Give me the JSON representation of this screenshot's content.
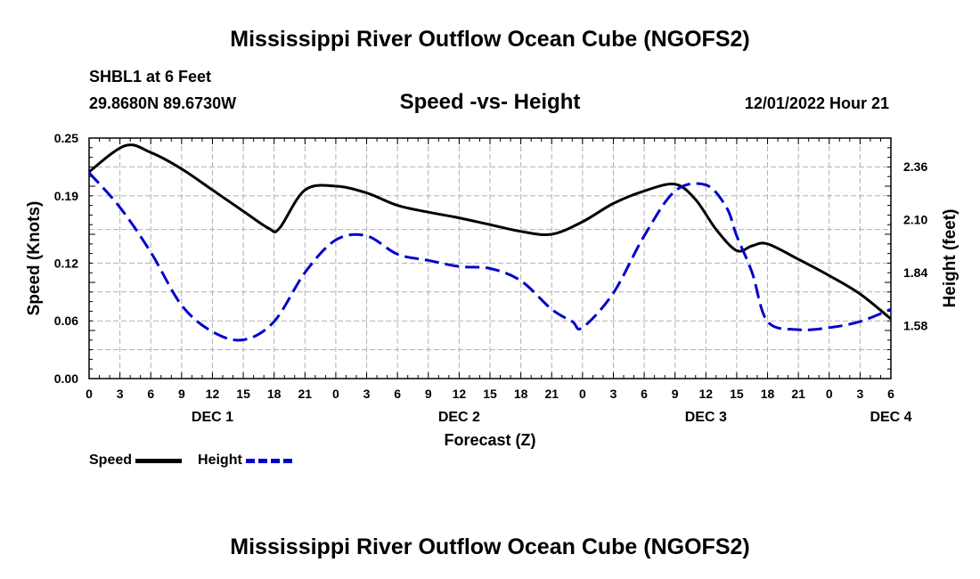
{
  "header": {
    "title": "Mississippi River Outflow Ocean Cube (NGOFS2)",
    "station": "SHBL1 at 6 Feet",
    "coordinates": "29.8680N  89.6730W",
    "subtitle": "Speed -vs- Height",
    "datetime": "12/01/2022 Hour 21"
  },
  "footer": {
    "title": "Mississippi River Outflow Ocean Cube (NGOFS2)"
  },
  "legend": {
    "speed_label": "Speed",
    "height_label": "Height"
  },
  "colors": {
    "speed": "#000000",
    "height": "#0000cc",
    "grid": "#b0b0b0"
  },
  "chart_data": {
    "type": "line",
    "title": "Speed -vs- Height",
    "xlabel": "Forecast (Z)",
    "ylabel": "Speed (Knots)",
    "y2label": "Height (feet)",
    "x_unit": "hours from Dec 1 00Z",
    "xlim": [
      0,
      78
    ],
    "x_ticks": [
      0,
      3,
      6,
      9,
      12,
      15,
      18,
      21,
      24,
      27,
      30,
      33,
      36,
      39,
      42,
      45,
      48,
      51,
      54,
      57,
      60,
      63,
      66,
      69,
      72,
      75,
      78
    ],
    "x_tick_labels": [
      "0",
      "3",
      "6",
      "9",
      "12",
      "15",
      "18",
      "21",
      "0",
      "3",
      "6",
      "9",
      "12",
      "15",
      "18",
      "21",
      "0",
      "3",
      "6",
      "9",
      "12",
      "15",
      "18",
      "21",
      "0",
      "3",
      "6"
    ],
    "day_labels": [
      {
        "label": "DEC 1",
        "x": 12
      },
      {
        "label": "DEC 2",
        "x": 36
      },
      {
        "label": "DEC 3",
        "x": 60
      },
      {
        "label": "DEC 4",
        "x": 78
      }
    ],
    "ylim": [
      0,
      0.25
    ],
    "y_ticks": [
      0,
      0.06,
      0.12,
      0.19,
      0.25
    ],
    "y_tick_labels": [
      "0.00",
      "0.06",
      "0.12",
      "0.19",
      "0.25"
    ],
    "y2lim": [
      1.32,
      2.5
    ],
    "y2_ticks": [
      1.58,
      1.84,
      2.1,
      2.36
    ],
    "y2_tick_labels": [
      "1.58",
      "1.84",
      "2.10",
      "2.36"
    ],
    "series": [
      {
        "name": "Speed",
        "axis": "left",
        "style": "solid",
        "x": [
          0,
          3.5,
          6,
          9,
          12,
          15,
          17.5,
          18.5,
          21,
          24,
          27,
          30,
          33,
          36,
          39,
          42,
          45,
          48,
          51,
          54,
          57,
          59,
          61,
          63,
          64.5,
          66,
          69,
          72,
          75,
          78
        ],
        "y": [
          0.215,
          0.242,
          0.235,
          0.218,
          0.196,
          0.174,
          0.156,
          0.156,
          0.196,
          0.2,
          0.193,
          0.18,
          0.173,
          0.167,
          0.16,
          0.153,
          0.15,
          0.163,
          0.182,
          0.195,
          0.202,
          0.186,
          0.155,
          0.133,
          0.138,
          0.14,
          0.124,
          0.107,
          0.088,
          0.062
        ]
      },
      {
        "name": "Height",
        "axis": "right",
        "style": "dashed",
        "x": [
          0,
          3,
          6,
          9,
          12,
          15,
          18,
          21,
          24,
          27,
          30,
          33,
          36,
          39,
          42,
          45,
          47,
          48,
          51,
          54,
          57,
          60,
          62,
          63,
          64.5,
          66,
          69,
          72,
          75,
          78
        ],
        "y": [
          2.33,
          2.16,
          1.94,
          1.68,
          1.55,
          1.51,
          1.6,
          1.84,
          2.0,
          2.02,
          1.93,
          1.9,
          1.87,
          1.86,
          1.8,
          1.66,
          1.6,
          1.57,
          1.74,
          2.02,
          2.24,
          2.27,
          2.16,
          2.02,
          1.84,
          1.6,
          1.56,
          1.57,
          1.6,
          1.66
        ]
      }
    ]
  }
}
